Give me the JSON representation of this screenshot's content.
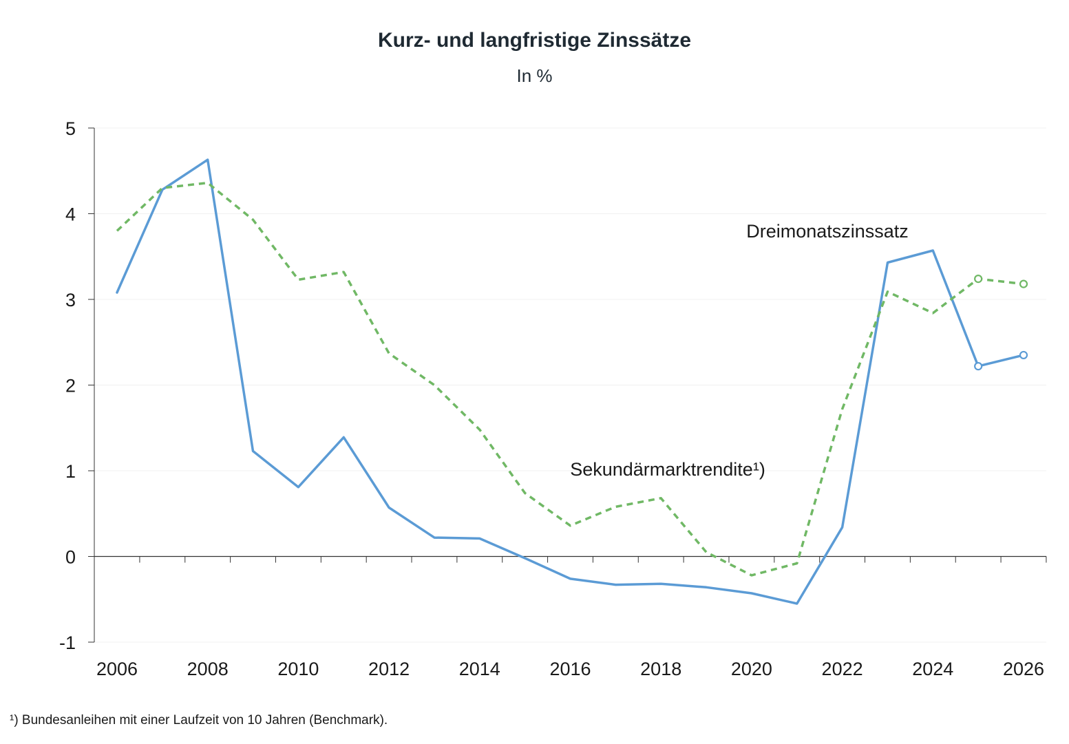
{
  "chart": {
    "title": "Kurz- und langfristige Zinssätze",
    "subtitle": "In %",
    "footnote": "¹) Bundesanleihen mit einer Laufzeit von 10 Jahren (Benchmark)."
  },
  "chart_data": {
    "type": "line",
    "title": "Kurz- und langfristige Zinssätze",
    "subtitle": "In %",
    "xlabel": "",
    "ylabel": "",
    "x": [
      2006,
      2007,
      2008,
      2009,
      2010,
      2011,
      2012,
      2013,
      2014,
      2015,
      2016,
      2017,
      2018,
      2019,
      2020,
      2021,
      2022,
      2023,
      2024,
      2025,
      2026
    ],
    "xlim": [
      2006,
      2026
    ],
    "ylim": [
      -1,
      5
    ],
    "x_ticks": [
      "2006",
      "2008",
      "2010",
      "2012",
      "2014",
      "2016",
      "2018",
      "2020",
      "2022",
      "2024",
      "2026"
    ],
    "y_ticks": [
      "-1",
      "0",
      "1",
      "2",
      "3",
      "4",
      "5"
    ],
    "grid": true,
    "legend": "none (inline labels)",
    "series": [
      {
        "name": "Dreimonatszinssatz",
        "color": "#5b9bd5",
        "style": "solid",
        "values": [
          3.08,
          4.28,
          4.63,
          1.23,
          0.81,
          1.39,
          0.57,
          0.22,
          0.21,
          -0.02,
          -0.26,
          -0.33,
          -0.32,
          -0.36,
          -0.43,
          -0.55,
          0.34,
          3.43,
          3.57,
          2.22,
          2.35
        ],
        "forecast_from": 2025
      },
      {
        "name": "Sekundärmarktrendite¹)",
        "color": "#70b865",
        "style": "dashed",
        "values": [
          3.8,
          4.3,
          4.36,
          3.93,
          3.23,
          3.32,
          2.37,
          2.0,
          1.48,
          0.74,
          0.36,
          0.58,
          0.68,
          0.05,
          -0.22,
          -0.08,
          1.72,
          3.09,
          2.84,
          3.24,
          3.18
        ],
        "forecast_from": 2025
      }
    ]
  }
}
